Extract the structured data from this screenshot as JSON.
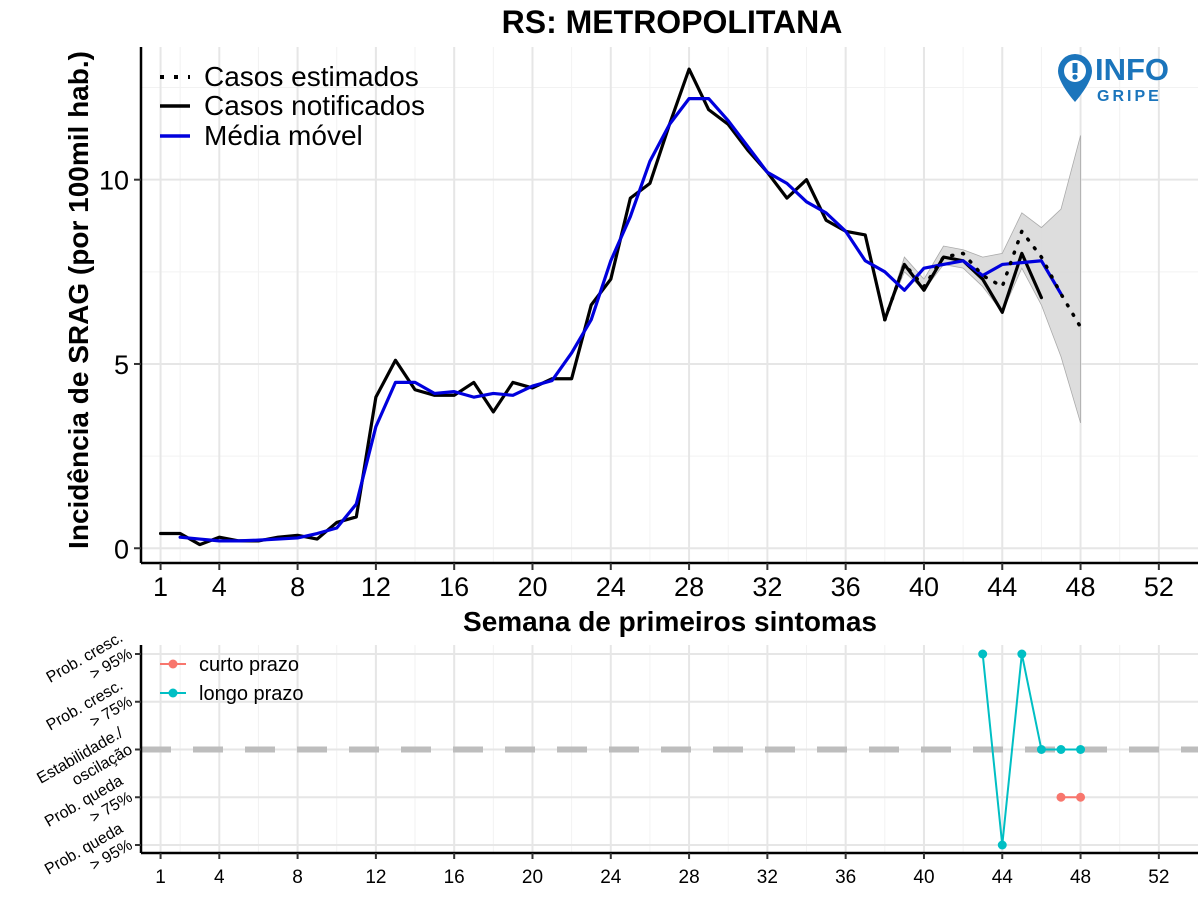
{
  "logo": {
    "line1": "INFO",
    "line2": "GRIPE",
    "color": "#1b75bc"
  },
  "chart_data": [
    {
      "type": "line",
      "title": "RS: METROPOLITANA",
      "xlabel": "Semana de primeiros sintomas",
      "ylabel": "Incidência de SRAG (por 100mil hab.)",
      "xlim": [
        0,
        54
      ],
      "ylim": [
        -0.4,
        13.6
      ],
      "xticks": [
        1,
        4,
        8,
        12,
        16,
        20,
        24,
        28,
        32,
        36,
        40,
        44,
        48,
        52
      ],
      "yticks": [
        0,
        5,
        10
      ],
      "grid": true,
      "legend_position": "top-left",
      "series": [
        {
          "name": "Casos estimados",
          "style": "dotted",
          "color": "#000000",
          "x": [
            38,
            39,
            40,
            41,
            42,
            43,
            44,
            45,
            46,
            47,
            48
          ],
          "y": [
            6.2,
            7.7,
            7.1,
            7.9,
            8.0,
            7.4,
            7.1,
            8.6,
            7.9,
            6.9,
            6.0
          ]
        },
        {
          "name": "Casos notificados",
          "style": "solid",
          "color": "#000000",
          "x": [
            1,
            2,
            3,
            4,
            5,
            6,
            7,
            8,
            9,
            10,
            11,
            12,
            13,
            14,
            15,
            16,
            17,
            18,
            19,
            20,
            21,
            22,
            23,
            24,
            25,
            26,
            27,
            28,
            29,
            30,
            31,
            32,
            33,
            34,
            35,
            36,
            37,
            38,
            39,
            40,
            41,
            42,
            43,
            44,
            45,
            46
          ],
          "y": [
            0.4,
            0.4,
            0.1,
            0.3,
            0.2,
            0.2,
            0.3,
            0.35,
            0.25,
            0.7,
            0.85,
            4.1,
            5.1,
            4.3,
            4.15,
            4.15,
            4.5,
            3.7,
            4.5,
            4.35,
            4.6,
            4.6,
            6.6,
            7.3,
            9.5,
            9.9,
            11.5,
            13.0,
            11.9,
            11.5,
            10.8,
            10.2,
            9.5,
            10.0,
            8.9,
            8.6,
            8.5,
            6.2,
            7.7,
            7.0,
            7.9,
            7.8,
            7.3,
            6.4,
            8.0,
            6.8
          ]
        },
        {
          "name": "Média móvel",
          "style": "solid",
          "color": "#0000dd",
          "x": [
            2,
            3,
            4,
            5,
            6,
            7,
            8,
            9,
            10,
            11,
            12,
            13,
            14,
            15,
            16,
            17,
            18,
            19,
            20,
            21,
            22,
            23,
            24,
            25,
            26,
            27,
            28,
            29,
            30,
            31,
            32,
            33,
            34,
            35,
            36,
            37,
            38,
            39,
            40,
            41,
            42,
            43,
            44,
            45,
            46,
            47
          ],
          "y": [
            0.3,
            0.25,
            0.2,
            0.2,
            0.22,
            0.25,
            0.28,
            0.4,
            0.55,
            1.2,
            3.3,
            4.5,
            4.5,
            4.2,
            4.25,
            4.1,
            4.2,
            4.15,
            4.4,
            4.55,
            5.3,
            6.2,
            7.8,
            9.0,
            10.5,
            11.5,
            12.2,
            12.2,
            11.6,
            10.9,
            10.2,
            9.9,
            9.4,
            9.1,
            8.6,
            7.8,
            7.5,
            7.0,
            7.6,
            7.7,
            7.8,
            7.4,
            7.7,
            7.75,
            7.8,
            6.9
          ]
        }
      ],
      "interval": {
        "x": [
          38,
          39,
          40,
          41,
          42,
          43,
          44,
          45,
          46,
          47,
          48
        ],
        "lower": [
          6.2,
          7.5,
          7.0,
          7.7,
          7.6,
          7.1,
          6.4,
          7.6,
          6.6,
          5.2,
          3.4
        ],
        "upper": [
          6.2,
          7.9,
          7.3,
          8.2,
          8.1,
          7.9,
          8.0,
          9.1,
          8.7,
          9.2,
          11.2
        ],
        "color": "#bdbdbd"
      }
    },
    {
      "type": "line",
      "xticks": [
        1,
        4,
        8,
        12,
        16,
        20,
        24,
        28,
        32,
        36,
        40,
        44,
        48,
        52
      ],
      "xlim": [
        0,
        54
      ],
      "y_categories": [
        "Prob. cresc. > 95%",
        "Prob. cresc. > 75%",
        "Estabilidade./ oscilação",
        "Prob. queda > 75%",
        "Prob. queda > 95%"
      ],
      "y_category_lines": [
        [
          "Prob. cresc.",
          "> 95%"
        ],
        [
          "Prob. cresc.",
          "> 75%"
        ],
        [
          "Estabilidade./",
          "oscilação"
        ],
        [
          "Prob. queda",
          "> 75%"
        ],
        [
          "Prob. queda",
          "> 95%"
        ]
      ],
      "reference_level": 3,
      "legend_position": "top-left",
      "series": [
        {
          "name": "curto prazo",
          "color": "#f8766d",
          "x": [
            47,
            48
          ],
          "y": [
            4,
            4
          ]
        },
        {
          "name": "longo prazo",
          "color": "#00bfc4",
          "x": [
            43,
            44,
            45,
            46,
            47,
            48
          ],
          "y": [
            1,
            5,
            1,
            3,
            3,
            3
          ]
        }
      ]
    }
  ]
}
